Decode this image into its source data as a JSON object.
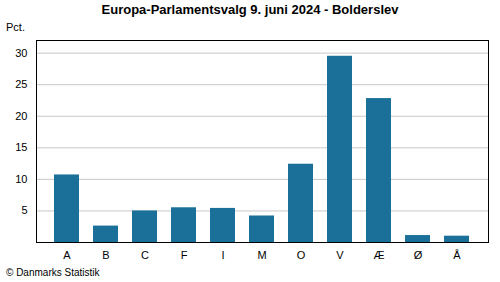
{
  "chart_data": {
    "type": "bar",
    "title": "Europa-Parlamentsvalg 9. juni 2024 - Bolderslev",
    "ylabel": "Pct.",
    "footer": "© Danmarks Statistik",
    "categories": [
      "A",
      "B",
      "C",
      "F",
      "I",
      "M",
      "O",
      "V",
      "Æ",
      "Ø",
      "Å"
    ],
    "values": [
      10.7,
      2.6,
      5.0,
      5.5,
      5.4,
      4.2,
      12.4,
      29.5,
      22.8,
      1.1,
      1.0
    ],
    "color": "#1a7099",
    "ylim": [
      0,
      32
    ],
    "yticks": [
      5,
      10,
      15,
      20,
      25,
      30
    ],
    "grid": true
  }
}
